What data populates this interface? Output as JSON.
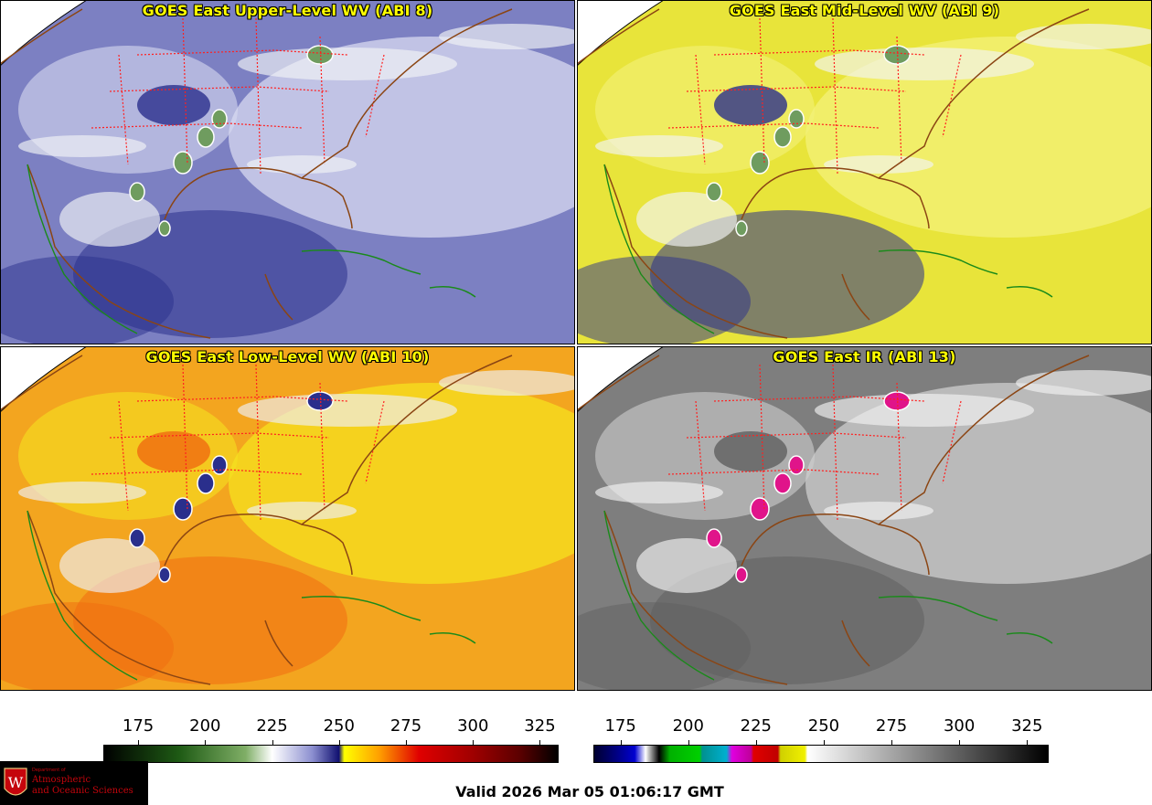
{
  "panels": [
    {
      "title": "GOES East Upper-Level WV (ABI 8)",
      "colors": {
        "base": "#7c80c2",
        "light": "#d8daf0",
        "dark": "#2a2f8c",
        "cloud": "#f2f4f6",
        "green": "#6f9c5f"
      }
    },
    {
      "title": "GOES East Mid-Level WV (ABI 9)",
      "colors": {
        "base": "#e8e43a",
        "light": "#f4f27a",
        "dark": "#2a2f8c",
        "cloud": "#f2f4f6",
        "green": "#6f9c5f"
      }
    },
    {
      "title": "GOES East Low-Level WV (ABI 10)",
      "colors": {
        "base": "#f3a51f",
        "light": "#f5e11f",
        "dark": "#f06b10",
        "cloud": "#eef0f8",
        "green": "#2a2f8c"
      }
    },
    {
      "title": "GOES East IR (ABI 13)",
      "colors": {
        "base": "#7e7e7e",
        "light": "#cfcfcf",
        "dark": "#5f5f5f",
        "cloud": "#f2f2f2",
        "green": "#e0148a"
      }
    }
  ],
  "colorbar_wv": {
    "ticks": [
      "175",
      "200",
      "225",
      "250",
      "275",
      "300",
      "325"
    ],
    "tick_values": [
      175,
      200,
      225,
      250,
      275,
      300,
      325
    ],
    "range": [
      162,
      332
    ],
    "stops": [
      {
        "v": 162,
        "c": "#000000"
      },
      {
        "v": 190,
        "c": "#1e5a14"
      },
      {
        "v": 215,
        "c": "#7fae66"
      },
      {
        "v": 225,
        "c": "#ffffff"
      },
      {
        "v": 240,
        "c": "#8c8fd0"
      },
      {
        "v": 250,
        "c": "#101070"
      },
      {
        "v": 252,
        "c": "#ffff00"
      },
      {
        "v": 265,
        "c": "#ffa000"
      },
      {
        "v": 280,
        "c": "#e00000"
      },
      {
        "v": 300,
        "c": "#a00000"
      },
      {
        "v": 318,
        "c": "#5a0000"
      },
      {
        "v": 332,
        "c": "#000000"
      }
    ]
  },
  "colorbar_ir": {
    "ticks": [
      "175",
      "200",
      "225",
      "250",
      "275",
      "300",
      "325"
    ],
    "tick_values": [
      175,
      200,
      225,
      250,
      275,
      300,
      325
    ],
    "range": [
      165,
      333
    ],
    "stops": [
      {
        "v": 165,
        "c": "#000030"
      },
      {
        "v": 173,
        "c": "#000080"
      },
      {
        "v": 180,
        "c": "#0000d0"
      },
      {
        "v": 184,
        "c": "#ffffff"
      },
      {
        "v": 189,
        "c": "#000000"
      },
      {
        "v": 193,
        "c": "#00b000"
      },
      {
        "v": 204,
        "c": "#00d000"
      },
      {
        "v": 205,
        "c": "#009090"
      },
      {
        "v": 214,
        "c": "#00b0d0"
      },
      {
        "v": 216,
        "c": "#e000e0"
      },
      {
        "v": 223,
        "c": "#c0009a"
      },
      {
        "v": 224,
        "c": "#e00000"
      },
      {
        "v": 233,
        "c": "#c00000"
      },
      {
        "v": 234,
        "c": "#d0d000"
      },
      {
        "v": 243,
        "c": "#f0f000"
      },
      {
        "v": 244,
        "c": "#ffffff"
      },
      {
        "v": 333,
        "c": "#000000"
      }
    ]
  },
  "valid_time": "Valid 2026 Mar 05 01:06:17 GMT",
  "logo": {
    "dept": "Department of",
    "line1": "Atmospheric",
    "line2": "and Oceanic Sciences",
    "seal_letter": "W"
  }
}
